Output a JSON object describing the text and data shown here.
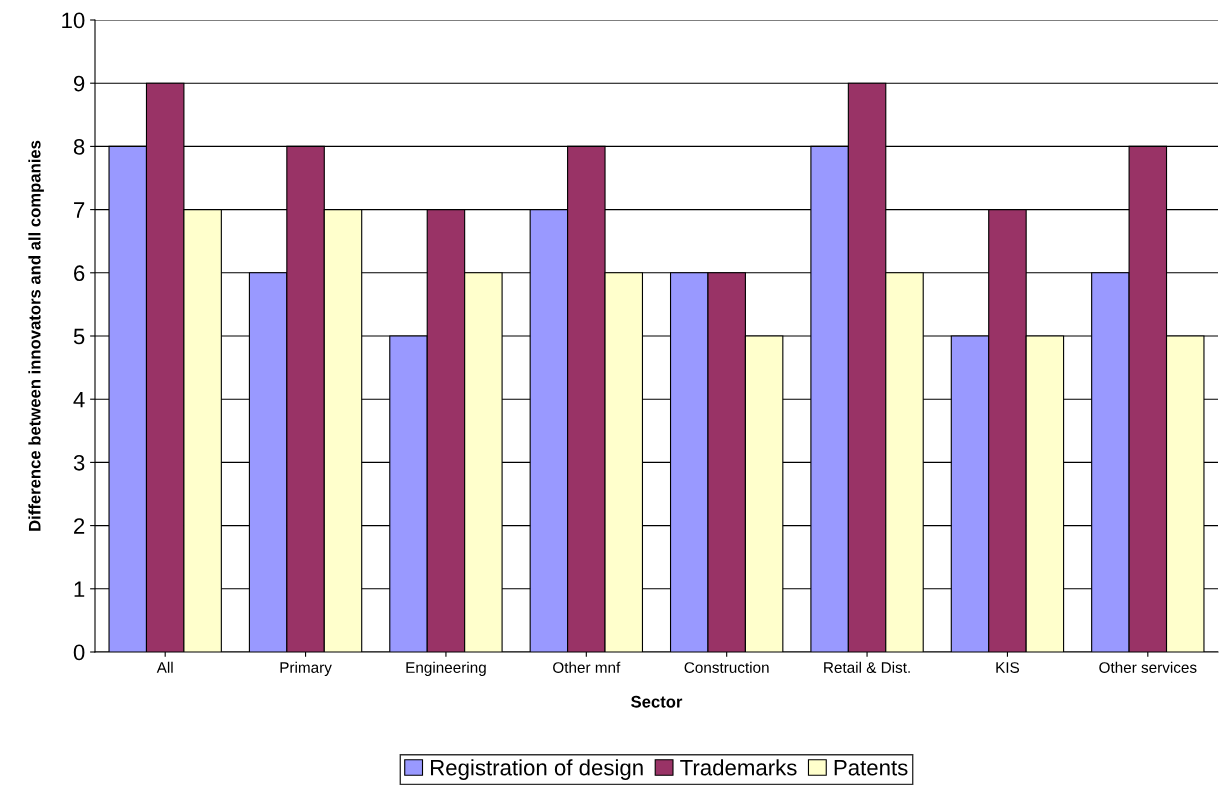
{
  "chart_data": {
    "type": "bar",
    "xlabel": "Sector",
    "ylabel": "Difference between innovators and all companies",
    "categories": [
      "All",
      "Primary",
      "Engineering",
      "Other mnf",
      "Construction",
      "Retail & Dist.",
      "KIS",
      "Other services"
    ],
    "series": [
      {
        "name": "Registration of design",
        "color": "#9999ff",
        "values": [
          8,
          6,
          5,
          7,
          6,
          8,
          5,
          6
        ]
      },
      {
        "name": "Trademarks",
        "color": "#993366",
        "values": [
          9,
          8,
          7,
          8,
          6,
          9,
          7,
          8
        ]
      },
      {
        "name": "Patents",
        "color": "#ffffcc",
        "values": [
          7,
          7,
          6,
          6,
          5,
          6,
          5,
          5
        ]
      }
    ],
    "ylim": [
      0,
      10
    ],
    "yticks": [
      0,
      1,
      2,
      3,
      4,
      5,
      6,
      7,
      8,
      9,
      10
    ],
    "grid": "y",
    "legend": "bottom"
  }
}
